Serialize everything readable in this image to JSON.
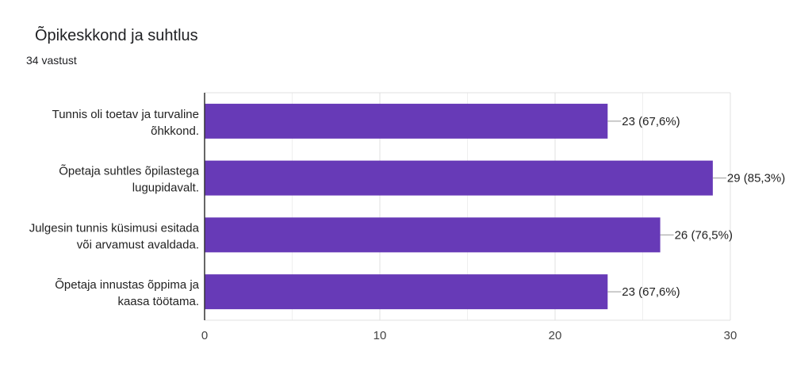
{
  "header": {
    "title": "Õpikeskkond ja suhtlus",
    "subtitle": "34 vastust"
  },
  "chart_data": {
    "type": "bar",
    "orientation": "horizontal",
    "categories": [
      [
        "Tunnis oli toetav ja turvaline",
        "õhkkond."
      ],
      [
        "Õpetaja suhtles õpilastega",
        "lugupidavalt."
      ],
      [
        "Julgesin tunnis küsimusi esitada",
        "või arvamust avaldada."
      ],
      [
        "Õpetaja innustas õppima ja",
        "kaasa töötama."
      ]
    ],
    "values": [
      23,
      29,
      26,
      23
    ],
    "data_labels": [
      "23 (67,6%)",
      "29 (85,3%)",
      "26 (76,5%)",
      "23 (67,6%)"
    ],
    "x_ticks": [
      "0",
      "10",
      "20",
      "30"
    ],
    "xlim": [
      0,
      30
    ],
    "grid": true,
    "bar_color": "#673ab7"
  }
}
